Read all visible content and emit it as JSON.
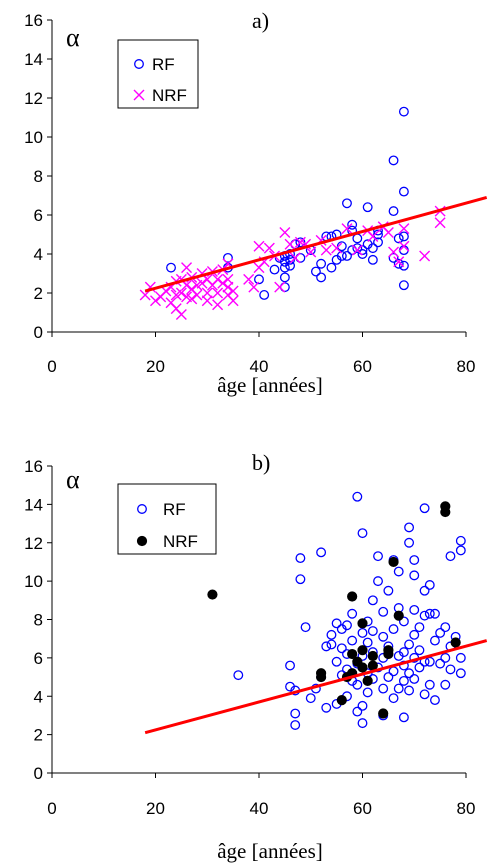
{
  "chart_data": [
    {
      "type": "scatter",
      "panel_label": "a)",
      "ylabel": "α",
      "xlabel": "âge  [années]",
      "xlim": [
        0,
        80
      ],
      "ylim": [
        0,
        16
      ],
      "xticks": [
        0,
        20,
        40,
        60,
        80
      ],
      "yticks": [
        0,
        2,
        4,
        6,
        8,
        10,
        12,
        14,
        16
      ],
      "grid": false,
      "legend_position": "top-left",
      "series": [
        {
          "name": "RF",
          "marker": "circle-open",
          "color": "#0000ff",
          "points": [
            [
              23,
              3.3
            ],
            [
              34,
              3.8
            ],
            [
              34,
              3.3
            ],
            [
              40,
              2.7
            ],
            [
              41,
              1.9
            ],
            [
              43,
              3.2
            ],
            [
              44,
              3.8
            ],
            [
              45,
              2.3
            ],
            [
              45,
              2.8
            ],
            [
              45,
              3.3
            ],
            [
              45,
              3.6
            ],
            [
              45,
              3.9
            ],
            [
              46,
              3.4
            ],
            [
              46,
              3.7
            ],
            [
              46,
              4.0
            ],
            [
              47,
              4.5
            ],
            [
              48,
              3.8
            ],
            [
              48,
              4.6
            ],
            [
              50,
              4.2
            ],
            [
              51,
              3.1
            ],
            [
              52,
              2.8
            ],
            [
              52,
              3.5
            ],
            [
              53,
              4.9
            ],
            [
              54,
              3.3
            ],
            [
              54,
              4.9
            ],
            [
              55,
              3.7
            ],
            [
              55,
              5.0
            ],
            [
              56,
              3.9
            ],
            [
              56,
              4.4
            ],
            [
              57,
              3.9
            ],
            [
              57,
              6.6
            ],
            [
              58,
              4.2
            ],
            [
              58,
              5.2
            ],
            [
              58,
              5.5
            ],
            [
              59,
              4.3
            ],
            [
              59,
              4.8
            ],
            [
              60,
              4.0
            ],
            [
              60,
              4.2
            ],
            [
              61,
              4.5
            ],
            [
              61,
              6.4
            ],
            [
              62,
              3.7
            ],
            [
              62,
              4.3
            ],
            [
              63,
              4.6
            ],
            [
              63,
              5.0
            ],
            [
              63,
              5.2
            ],
            [
              66,
              3.8
            ],
            [
              66,
              6.2
            ],
            [
              66,
              8.8
            ],
            [
              67,
              3.5
            ],
            [
              67,
              4.8
            ],
            [
              68,
              2.4
            ],
            [
              68,
              3.4
            ],
            [
              68,
              4.2
            ],
            [
              68,
              4.9
            ],
            [
              68,
              7.2
            ],
            [
              68,
              11.3
            ]
          ]
        },
        {
          "name": "NRF",
          "marker": "x",
          "color": "#ff00ff",
          "points": [
            [
              18,
              1.9
            ],
            [
              19,
              2.3
            ],
            [
              20,
              1.6
            ],
            [
              21,
              1.8
            ],
            [
              22,
              2.1
            ],
            [
              23,
              2.3
            ],
            [
              23,
              1.5
            ],
            [
              24,
              2.6
            ],
            [
              24,
              1.2
            ],
            [
              24,
              1.9
            ],
            [
              25,
              2.0
            ],
            [
              25,
              2.7
            ],
            [
              25,
              0.9
            ],
            [
              26,
              2.4
            ],
            [
              26,
              1.8
            ],
            [
              26,
              3.3
            ],
            [
              27,
              2.2
            ],
            [
              27,
              2.8
            ],
            [
              27,
              1.7
            ],
            [
              28,
              2.4
            ],
            [
              28,
              1.9
            ],
            [
              29,
              2.5
            ],
            [
              29,
              3.0
            ],
            [
              30,
              2.0
            ],
            [
              30,
              2.7
            ],
            [
              30,
              1.6
            ],
            [
              31,
              2.4
            ],
            [
              31,
              3.1
            ],
            [
              32,
              2.0
            ],
            [
              32,
              2.7
            ],
            [
              32,
              1.4
            ],
            [
              33,
              2.5
            ],
            [
              33,
              3.2
            ],
            [
              34,
              1.9
            ],
            [
              34,
              2.3
            ],
            [
              34,
              2.7
            ],
            [
              34,
              3.5
            ],
            [
              35,
              2.1
            ],
            [
              35,
              1.6
            ],
            [
              38,
              2.7
            ],
            [
              39,
              2.3
            ],
            [
              40,
              3.3
            ],
            [
              40,
              4.4
            ],
            [
              41,
              3.6
            ],
            [
              42,
              4.3
            ],
            [
              43,
              3.9
            ],
            [
              44,
              2.3
            ],
            [
              45,
              5.1
            ],
            [
              46,
              4.5
            ],
            [
              47,
              3.8
            ],
            [
              48,
              4.6
            ],
            [
              49,
              4.5
            ],
            [
              50,
              4.1
            ],
            [
              52,
              4.7
            ],
            [
              53,
              4.2
            ],
            [
              55,
              4.3
            ],
            [
              57,
              5.3
            ],
            [
              59,
              4.2
            ],
            [
              61,
              5.2
            ],
            [
              62,
              4.9
            ],
            [
              64,
              5.4
            ],
            [
              65,
              5.1
            ],
            [
              66,
              4.1
            ],
            [
              67,
              3.6
            ],
            [
              68,
              4.4
            ],
            [
              68,
              5.3
            ],
            [
              72,
              3.9
            ],
            [
              75,
              6.2
            ],
            [
              75,
              5.6
            ]
          ]
        }
      ],
      "trendline": {
        "color": "#ff0000",
        "x": [
          18,
          84
        ],
        "y": [
          2.1,
          6.9
        ]
      }
    },
    {
      "type": "scatter",
      "panel_label": "b)",
      "ylabel": "α",
      "xlabel": "âge  [années]",
      "xlim": [
        0,
        80
      ],
      "ylim": [
        0,
        16
      ],
      "xticks": [
        0,
        20,
        40,
        60,
        80
      ],
      "yticks": [
        0,
        2,
        4,
        6,
        8,
        10,
        12,
        14,
        16
      ],
      "grid": false,
      "legend_position": "top-left",
      "series": [
        {
          "name": "RF",
          "marker": "circle-open",
          "color": "#0000ff",
          "points": [
            [
              36,
              5.1
            ],
            [
              46,
              4.5
            ],
            [
              46,
              5.6
            ],
            [
              47,
              2.5
            ],
            [
              47,
              3.1
            ],
            [
              47,
              4.3
            ],
            [
              48,
              10.1
            ],
            [
              48,
              11.2
            ],
            [
              49,
              7.6
            ],
            [
              50,
              3.9
            ],
            [
              51,
              4.4
            ],
            [
              52,
              5.0
            ],
            [
              52,
              11.5
            ],
            [
              53,
              3.4
            ],
            [
              53,
              6.6
            ],
            [
              54,
              6.7
            ],
            [
              54,
              7.2
            ],
            [
              55,
              3.6
            ],
            [
              55,
              5.8
            ],
            [
              55,
              7.8
            ],
            [
              56,
              5.1
            ],
            [
              56,
              6.5
            ],
            [
              56,
              7.5
            ],
            [
              57,
              4.0
            ],
            [
              57,
              5.4
            ],
            [
              57,
              6.2
            ],
            [
              57,
              7.7
            ],
            [
              58,
              4.8
            ],
            [
              58,
              6.9
            ],
            [
              58,
              8.3
            ],
            [
              59,
              3.2
            ],
            [
              59,
              4.6
            ],
            [
              59,
              5.7
            ],
            [
              59,
              14.4
            ],
            [
              60,
              2.6
            ],
            [
              60,
              3.5
            ],
            [
              60,
              6.1
            ],
            [
              60,
              7.3
            ],
            [
              60,
              12.5
            ],
            [
              61,
              4.2
            ],
            [
              61,
              5.2
            ],
            [
              61,
              6.8
            ],
            [
              61,
              7.9
            ],
            [
              62,
              4.9
            ],
            [
              62,
              6.3
            ],
            [
              62,
              7.4
            ],
            [
              62,
              9.0
            ],
            [
              63,
              5.5
            ],
            [
              63,
              10.0
            ],
            [
              63,
              11.3
            ],
            [
              64,
              3.0
            ],
            [
              64,
              4.4
            ],
            [
              64,
              6.0
            ],
            [
              64,
              7.1
            ],
            [
              64,
              8.4
            ],
            [
              65,
              5.0
            ],
            [
              65,
              6.6
            ],
            [
              65,
              9.5
            ],
            [
              66,
              3.9
            ],
            [
              66,
              5.3
            ],
            [
              66,
              7.5
            ],
            [
              66,
              11.1
            ],
            [
              67,
              4.4
            ],
            [
              67,
              6.1
            ],
            [
              67,
              8.6
            ],
            [
              67,
              10.5
            ],
            [
              68,
              2.9
            ],
            [
              68,
              4.8
            ],
            [
              68,
              5.6
            ],
            [
              68,
              6.3
            ],
            [
              68,
              7.9
            ],
            [
              69,
              4.3
            ],
            [
              69,
              5.2
            ],
            [
              69,
              6.7
            ],
            [
              69,
              12.0
            ],
            [
              69,
              12.8
            ],
            [
              70,
              4.9
            ],
            [
              70,
              6.0
            ],
            [
              70,
              7.2
            ],
            [
              70,
              8.5
            ],
            [
              70,
              10.3
            ],
            [
              70,
              11.1
            ],
            [
              71,
              5.5
            ],
            [
              71,
              6.4
            ],
            [
              71,
              7.6
            ],
            [
              72,
              4.1
            ],
            [
              72,
              5.8
            ],
            [
              72,
              8.2
            ],
            [
              72,
              9.5
            ],
            [
              72,
              13.8
            ],
            [
              73,
              4.6
            ],
            [
              73,
              5.8
            ],
            [
              73,
              8.3
            ],
            [
              73,
              9.8
            ],
            [
              74,
              3.8
            ],
            [
              74,
              6.9
            ],
            [
              74,
              8.3
            ],
            [
              75,
              5.7
            ],
            [
              75,
              7.3
            ],
            [
              76,
              4.6
            ],
            [
              76,
              6.0
            ],
            [
              76,
              7.6
            ],
            [
              77,
              5.4
            ],
            [
              77,
              6.6
            ],
            [
              77,
              11.3
            ],
            [
              78,
              7.1
            ],
            [
              79,
              5.2
            ],
            [
              79,
              6.0
            ],
            [
              79,
              11.6
            ],
            [
              79,
              12.1
            ]
          ]
        },
        {
          "name": "NRF",
          "marker": "circle-filled",
          "color": "#000000",
          "points": [
            [
              31,
              9.3
            ],
            [
              52,
              5.0
            ],
            [
              52,
              5.2
            ],
            [
              56,
              3.8
            ],
            [
              57,
              5.0
            ],
            [
              58,
              5.2
            ],
            [
              58,
              6.2
            ],
            [
              58,
              9.2
            ],
            [
              59,
              5.8
            ],
            [
              60,
              5.5
            ],
            [
              60,
              6.4
            ],
            [
              60,
              7.8
            ],
            [
              61,
              4.8
            ],
            [
              62,
              5.6
            ],
            [
              62,
              6.1
            ],
            [
              64,
              3.1
            ],
            [
              65,
              6.2
            ],
            [
              65,
              6.4
            ],
            [
              66,
              11.0
            ],
            [
              67,
              8.2
            ],
            [
              76,
              13.6
            ],
            [
              76,
              13.9
            ],
            [
              78,
              6.8
            ]
          ]
        }
      ],
      "trendline": {
        "color": "#ff0000",
        "x": [
          18,
          84
        ],
        "y": [
          2.1,
          6.9
        ]
      }
    }
  ]
}
